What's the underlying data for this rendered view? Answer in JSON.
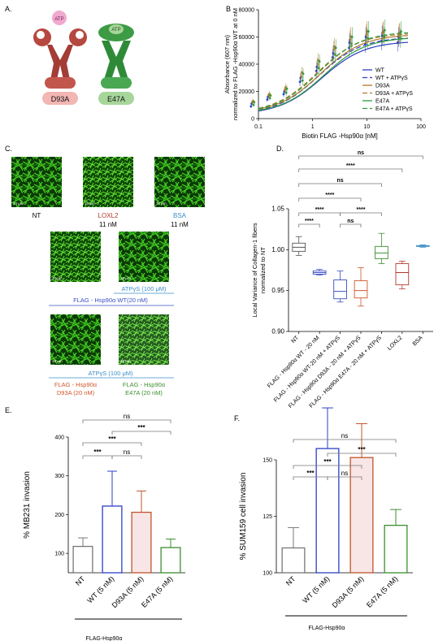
{
  "panel_labels": {
    "A": "A.",
    "B": "B",
    "C": "C.",
    "D": "D.",
    "E": "E.",
    "F": "F."
  },
  "panel_a": {
    "atp": "ATP",
    "d93a": "D93A",
    "e47a": "E47A",
    "colors": {
      "d93a_body": "#b5483f",
      "d93a_tag": "#f2b6b3",
      "e47a_body": "#3d9b46",
      "e47a_tag": "#a7d69a",
      "atp": "#f1a9cf"
    }
  },
  "panel_c": {
    "scale": "10 μm",
    "nt": "NT",
    "loxl2": "LOXL2",
    "loxl2_conc": "11 nM",
    "bsa": "BSA",
    "bsa_conc": "11 nM",
    "atp1": "ATPγS (100 μM)",
    "wt": "FLAG - Hsp90α WT(20 nM)",
    "atp2": "ATPγS (100 μM)",
    "d93a_1": "FLAG - Hsp90α",
    "d93a_2": "D93A (20 nM)",
    "e47a_1": "FLAG - Hsp90α",
    "e47a_2": "E47A (20 nM)",
    "colors": {
      "loxl2": "#b23a2f",
      "bsa": "#3a8fc4",
      "wt": "#3a4fc4",
      "d93a": "#d0562a",
      "e47a": "#3b8f2e",
      "atp": "#3a8fc4"
    }
  },
  "bracket_label": "FLAG-Hsp90α",
  "chart_data": [
    {
      "panel": "B",
      "type": "line",
      "xscale": "log",
      "xlabel": "Biotin FLAG -Hsp90α [nM]",
      "ylabel_lines": [
        "Absorbance (607 nm)",
        "normalized  to FLAG -Hsp90α WT at 0 nM"
      ],
      "xlim": [
        0.1,
        100
      ],
      "ylim": [
        0,
        80000
      ],
      "xticks": [
        "0.1",
        "1",
        "10",
        "100"
      ],
      "yticks": [
        "0",
        "20000",
        "40000",
        "60000",
        "80000"
      ],
      "x": [
        0.078,
        0.156,
        0.3125,
        0.625,
        1.25,
        2.5,
        5,
        10,
        20,
        40
      ],
      "series": [
        {
          "name": "WT",
          "color": "#2d3fc6",
          "dash": "",
          "ec50": 1.5,
          "top": 57000,
          "bottom": 3000,
          "values": [
            9000,
            14000,
            18000,
            27000,
            35000,
            45000,
            52000,
            55000,
            57000,
            56000
          ]
        },
        {
          "name": "WT + ATPγS",
          "color": "#2d3fc6",
          "dash": "6,3",
          "ec50": 1.3,
          "top": 60000,
          "bottom": 3000,
          "values": [
            11000,
            16000,
            20000,
            30000,
            38000,
            48000,
            56000,
            60000,
            61000,
            60000
          ]
        },
        {
          "name": "D93A",
          "color": "#b07a2a",
          "dash": "",
          "ec50": 1.4,
          "top": 62000,
          "bottom": 4000,
          "values": [
            12000,
            17000,
            21000,
            31000,
            40000,
            51000,
            58000,
            62000,
            63000,
            62000
          ]
        },
        {
          "name": "D93A + ATPγS",
          "color": "#b07a2a",
          "dash": "6,3",
          "ec50": 1.2,
          "top": 63000,
          "bottom": 4000,
          "values": [
            13000,
            18000,
            23000,
            34000,
            43000,
            53000,
            60000,
            64000,
            64000,
            63000
          ]
        },
        {
          "name": "E47A",
          "color": "#2f9b3c",
          "dash": "",
          "ec50": 1.6,
          "top": 60000,
          "bottom": 3500,
          "values": [
            10000,
            15000,
            19000,
            28000,
            37000,
            47000,
            55000,
            59000,
            60000,
            59000
          ]
        },
        {
          "name": "E47A + ATPγS",
          "color": "#2f9b3c",
          "dash": "6,3",
          "ec50": 1.3,
          "top": 64000,
          "bottom": 4000,
          "values": [
            12000,
            17000,
            22000,
            33000,
            42000,
            52000,
            60000,
            64000,
            65000,
            64000
          ]
        }
      ]
    },
    {
      "panel": "D",
      "type": "box",
      "ylabel_lines": [
        "Local Variance of Collagen-1 fibers",
        "normalized to NT"
      ],
      "ylim": [
        0.9,
        1.05
      ],
      "yticks": [
        "0.90",
        "0.95",
        "1.00",
        "1.05"
      ],
      "categories": [
        "NT",
        "FLAG - Hsp90α WT - 20 nM",
        "FLAG - Hsp90α WT-20 nM + ATPγS",
        "FLAG - Hsp90α D93A - 20 nM + ATPγS",
        "FLAG - Hsp90α E47A - 20 nM + ATPγS",
        "LOXL2",
        "BSA"
      ],
      "colors": [
        "#555555",
        "#3a4fc4",
        "#3a4fc4",
        "#d0562a",
        "#3b8f2e",
        "#b23a2f",
        "#3a8fc4"
      ],
      "boxes": [
        {
          "min": 0.993,
          "q1": 0.998,
          "median": 1.003,
          "q3": 1.008,
          "max": 1.016
        },
        {
          "min": 0.969,
          "q1": 0.97,
          "median": 0.972,
          "q3": 0.974,
          "max": 0.976
        },
        {
          "min": 0.936,
          "q1": 0.94,
          "median": 0.949,
          "q3": 0.963,
          "max": 0.974
        },
        {
          "min": 0.931,
          "q1": 0.941,
          "median": 0.95,
          "q3": 0.962,
          "max": 0.978
        },
        {
          "min": 0.983,
          "q1": 0.989,
          "median": 0.996,
          "q3": 1.004,
          "max": 1.02
        },
        {
          "min": 0.952,
          "q1": 0.957,
          "median": 0.972,
          "q3": 0.983,
          "max": 0.986
        },
        {
          "min": 1.003,
          "q1": 1.004,
          "median": 1.0045,
          "q3": 1.005,
          "max": 1.006
        }
      ],
      "comparisons": [
        {
          "from": 0,
          "to": 1,
          "label": "****"
        },
        {
          "from": 0,
          "to": 2,
          "label": "****"
        },
        {
          "from": 2,
          "to": 3,
          "label": "ns"
        },
        {
          "from": 2,
          "to": 4,
          "label": "****"
        },
        {
          "from": 0,
          "to": 3,
          "label": "****"
        },
        {
          "from": 0,
          "to": 4,
          "label": "ns"
        },
        {
          "from": 0,
          "to": 5,
          "label": "****"
        },
        {
          "from": 0,
          "to": 6,
          "label": "ns"
        }
      ]
    },
    {
      "panel": "E",
      "type": "bar",
      "ylabel": "% MB231 invasion",
      "ylim": [
        50,
        400
      ],
      "yticks": [
        "100",
        "200",
        "300",
        "400"
      ],
      "categories": [
        "NT",
        "WT (5 nM)",
        "D93A (5 nM)",
        "E47A (5 nM)"
      ],
      "values": [
        118,
        222,
        206,
        115
      ],
      "errors": [
        22,
        90,
        55,
        22
      ],
      "colors": [
        "#777777",
        "#2d3fc6",
        "#c0542a",
        "#3b8f2e"
      ],
      "fills": [
        "#ffffff",
        "#ffffff",
        "#f8e6e6",
        "#ffffff"
      ],
      "comparisons": [
        {
          "from": 0,
          "to": 1,
          "label": "***"
        },
        {
          "from": 1,
          "to": 2,
          "label": "ns"
        },
        {
          "from": 0,
          "to": 2,
          "label": "***"
        },
        {
          "from": 1,
          "to": 3,
          "label": "***"
        },
        {
          "from": 0,
          "to": 3,
          "label": "ns"
        }
      ]
    },
    {
      "panel": "F",
      "type": "bar",
      "ylabel": "% SUM159 cell invasion",
      "ylim": [
        100,
        150
      ],
      "yticks": [
        "100",
        "125",
        "150"
      ],
      "categories": [
        "NT",
        "WT (5 nM)",
        "D93A (5 nM)",
        "E47A (5 nM)"
      ],
      "values": [
        111,
        155,
        151,
        121
      ],
      "errors": [
        9,
        18,
        15,
        7
      ],
      "colors": [
        "#777777",
        "#2d3fc6",
        "#c0542a",
        "#3b8f2e"
      ],
      "fills": [
        "#ffffff",
        "#ffffff",
        "#f8e6e6",
        "#ffffff"
      ],
      "comparisons": [
        {
          "from": 0,
          "to": 1,
          "label": "***"
        },
        {
          "from": 1,
          "to": 2,
          "label": "ns"
        },
        {
          "from": 0,
          "to": 2,
          "label": "***"
        },
        {
          "from": 1,
          "to": 3,
          "label": "***"
        },
        {
          "from": 0,
          "to": 3,
          "label": "ns"
        }
      ]
    }
  ]
}
